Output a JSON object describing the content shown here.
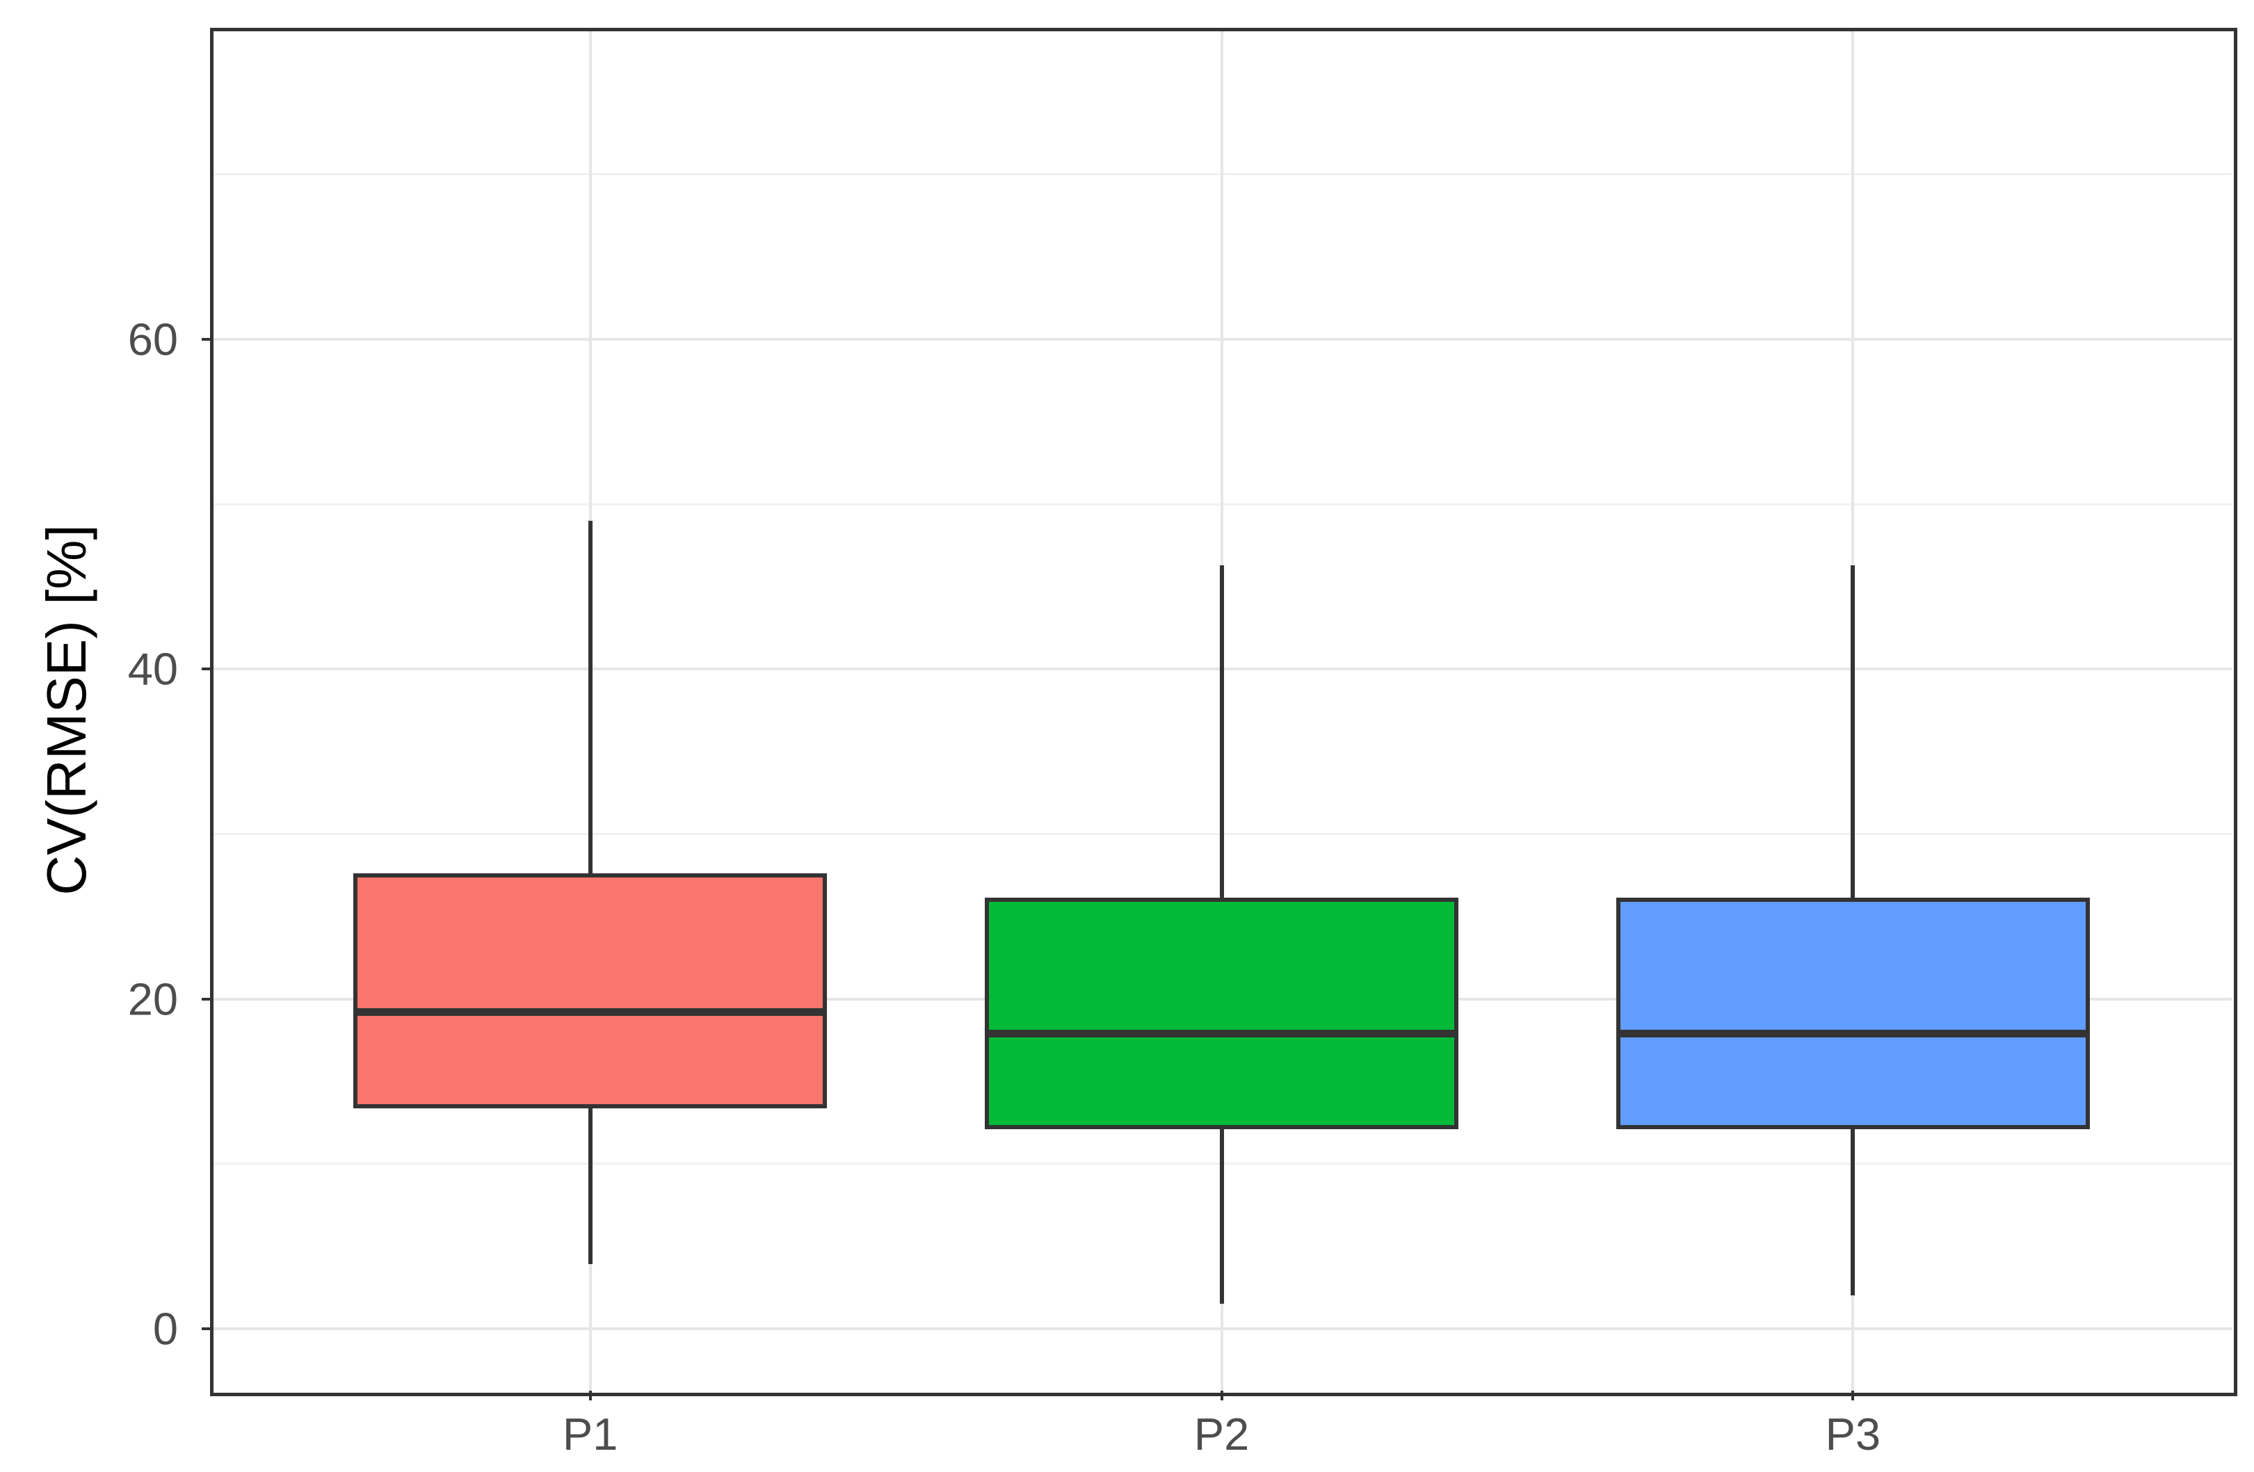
{
  "chart_data": {
    "type": "boxplot",
    "title": "",
    "xlabel": "",
    "ylabel": "CV(RMSE) [%]",
    "categories": [
      "P1",
      "P2",
      "P3"
    ],
    "series": [
      {
        "name": "P1",
        "min": 3.9,
        "q1": 13.5,
        "median": 19.2,
        "q3": 27.5,
        "max": 49.0,
        "fill": "#F8766D"
      },
      {
        "name": "P2",
        "min": 1.5,
        "q1": 12.2,
        "median": 17.9,
        "q3": 26.0,
        "max": 46.3,
        "fill": "#00BA38"
      },
      {
        "name": "P3",
        "min": 2.0,
        "q1": 12.2,
        "median": 17.9,
        "q3": 26.0,
        "max": 46.3,
        "fill": "#619CFF"
      }
    ],
    "y_ticks": [
      0,
      20,
      40,
      60
    ],
    "y_tick_labels": [
      "0",
      "20",
      "40",
      "60"
    ],
    "y_minor_ticks": [
      10,
      30,
      50,
      70
    ],
    "ylim": [
      -3.76,
      78.8
    ],
    "grid": true,
    "legend": false,
    "outliers": []
  },
  "style": {
    "background": "#FFFFFF",
    "panel_border_color": "#333333",
    "grid_major_color": "#E6E6E6",
    "grid_minor_color": "#F0F0F0",
    "box_stroke_color": "#333333",
    "tick_mark_color": "#333333",
    "tick_label_color": "#4D4D4D",
    "axis_title_color": "#000000"
  }
}
